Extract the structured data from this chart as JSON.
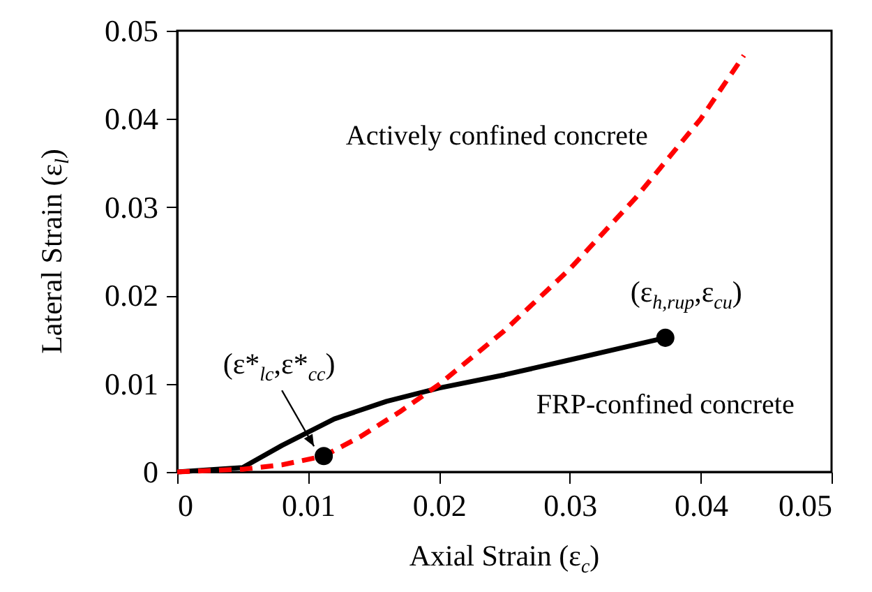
{
  "chart_data": {
    "type": "line",
    "xlabel": "Axial Strain (ε$_{c}$)",
    "ylabel": "Lateral Strain (ε$_{l}$)",
    "xlim": [
      0,
      0.05
    ],
    "xticks": [
      0,
      0.01,
      0.02,
      0.03,
      0.04,
      0.05
    ],
    "ylim": [
      0,
      0.05
    ],
    "yticks": [
      0,
      0.01,
      0.02,
      0.03,
      0.04,
      0.05
    ],
    "grid": false,
    "series": [
      {
        "name": "FRP-confined concrete",
        "color": "#000000",
        "line_style": "solid",
        "x": [
          0,
          0.005,
          0.008,
          0.012,
          0.016,
          0.02,
          0.025,
          0.03,
          0.0373
        ],
        "values": [
          0,
          0.0005,
          0.003,
          0.006,
          0.008,
          0.0095,
          0.011,
          0.0127,
          0.0152
        ]
      },
      {
        "name": "Actively confined concrete",
        "color": "#ff0000",
        "line_style": "dashed",
        "x": [
          0,
          0.005,
          0.008,
          0.0112,
          0.014,
          0.017,
          0.02,
          0.025,
          0.03,
          0.035,
          0.04,
          0.0433
        ],
        "values": [
          0,
          0.0003,
          0.0008,
          0.0018,
          0.004,
          0.0068,
          0.0099,
          0.016,
          0.023,
          0.031,
          0.04,
          0.0472
        ]
      },
      {
        "type": "scatter",
        "color": "#000000",
        "marker": "circle",
        "x": [
          0.0112,
          0.0373
        ],
        "values": [
          0.0018,
          0.0152
        ]
      }
    ],
    "annotations": [
      {
        "text": "(ε*$_{lc}$,ε*$_{cc}$)",
        "x": 0.0112,
        "y": 0.0018
      },
      {
        "text": "(ε$_{h,rup}$,ε$_{cu}$)",
        "x": 0.0373,
        "y": 0.0152
      }
    ]
  }
}
